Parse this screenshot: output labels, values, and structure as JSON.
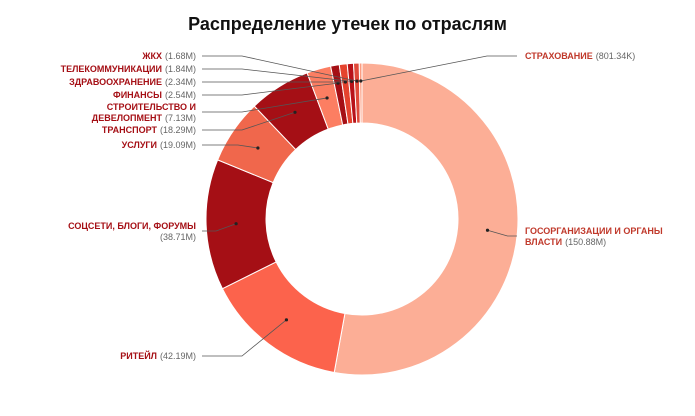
{
  "chart_data": {
    "type": "pie",
    "title": "Распределение утечек по отраслям",
    "donut": true,
    "slices": [
      {
        "label": "ГОСОРГАНИЗАЦИИ И ОРГАНЫ ВЛАСТИ",
        "value": 150.88,
        "value_label": "(150.88M)",
        "color": "#fcae96"
      },
      {
        "label": "РИТЕЙЛ",
        "value": 42.19,
        "value_label": "(42.19M)",
        "color": "#fc634c"
      },
      {
        "label": "СОЦСЕТИ, БЛОГИ, ФОРУМЫ",
        "value": 38.71,
        "value_label": "(38.71M)",
        "color": "#a50f15"
      },
      {
        "label": "УСЛУГИ",
        "value": 19.09,
        "value_label": "(19.09M)",
        "color": "#f0674c"
      },
      {
        "label": "ТРАНСПОРТ",
        "value": 18.29,
        "value_label": "(18.29M)",
        "color": "#a50f15"
      },
      {
        "label": "СТРОИТЕЛЬСТВО И ДЕВЕЛОПМЕНТ",
        "value": 7.13,
        "value_label": "(7.13M)",
        "color": "#fc7e62"
      },
      {
        "label": "ФИНАНСЫ",
        "value": 2.54,
        "value_label": "(2.54M)",
        "color": "#a50f15"
      },
      {
        "label": "ЗДРАВООХРАНЕНИЕ",
        "value": 2.34,
        "value_label": "(2.34M)",
        "color": "#e5432e"
      },
      {
        "label": "ТЕЛЕКОММУНИКАЦИИ",
        "value": 1.84,
        "value_label": "(1.84M)",
        "color": "#b81219"
      },
      {
        "label": "ЖКХ",
        "value": 1.68,
        "value_label": "(1.68M)",
        "color": "#e04a3a"
      },
      {
        "label": "СТРАХОВАНИЕ",
        "value": 0.80134,
        "value_label": "(801.34K)",
        "color": "#fc9c80"
      }
    ]
  }
}
